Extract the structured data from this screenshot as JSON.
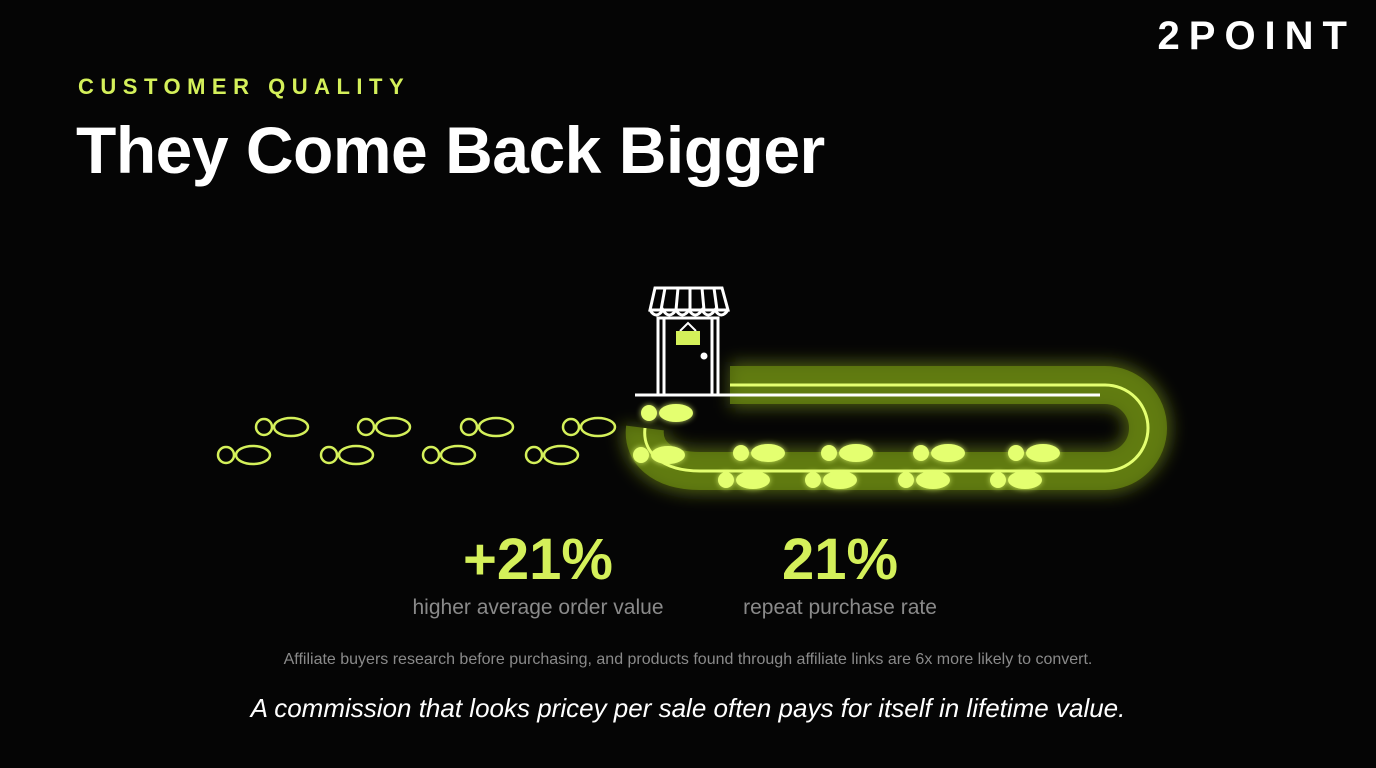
{
  "brand": "2POINT",
  "eyebrow": "CUSTOMER QUALITY",
  "title": "They Come Back Bigger",
  "stats": [
    {
      "value": "+21%",
      "label": "higher average order value"
    },
    {
      "value": "21%",
      "label": "repeat purchase rate"
    }
  ],
  "note": "Affiliate buyers research before purchasing, and products found through affiliate links are 6x more likely to convert.",
  "tagline": "A commission that looks pricey per sale often pays for itself in lifetime value."
}
